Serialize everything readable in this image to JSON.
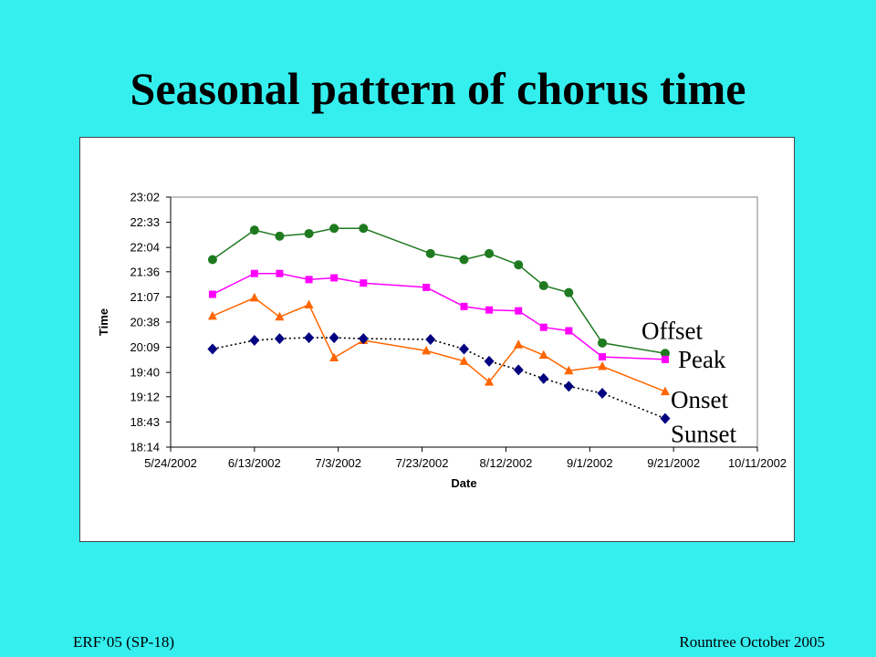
{
  "slide": {
    "title": "Seasonal pattern of chorus time",
    "footer_left": "ERF’05 (SP-18)",
    "footer_right": "Rountree October 2005"
  },
  "chart_data": {
    "type": "line",
    "xlabel": "Date",
    "ylabel": "Time",
    "xlim": [
      "2002-05-24",
      "2002-10-11"
    ],
    "ylim": [
      "18:14",
      "23:02"
    ],
    "x_ticks": [
      "5/24/2002",
      "6/13/2002",
      "7/3/2002",
      "7/23/2002",
      "8/12/2002",
      "9/1/2002",
      "9/21/2002",
      "10/11/2002"
    ],
    "y_ticks": [
      "23:02",
      "22:33",
      "22:04",
      "21:36",
      "21:07",
      "20:38",
      "20:09",
      "19:40",
      "19:12",
      "18:43",
      "18:14"
    ],
    "grid": false,
    "legend": "inline labels at the right end of each series",
    "series": [
      {
        "name": "Offset",
        "color": "#1f7a1f",
        "marker": "circle",
        "line": "solid",
        "points": [
          [
            "2002-06-03",
            "21:50"
          ],
          [
            "2002-06-13",
            "22:24"
          ],
          [
            "2002-06-19",
            "22:17"
          ],
          [
            "2002-06-26",
            "22:20"
          ],
          [
            "2002-07-02",
            "22:26"
          ],
          [
            "2002-07-09",
            "22:26"
          ],
          [
            "2002-07-25",
            "21:57"
          ],
          [
            "2002-08-02",
            "21:50"
          ],
          [
            "2002-08-08",
            "21:57"
          ],
          [
            "2002-08-15",
            "21:44"
          ],
          [
            "2002-08-21",
            "21:20"
          ],
          [
            "2002-08-27",
            "21:12"
          ],
          [
            "2002-09-04",
            "20:14"
          ],
          [
            "2002-09-19",
            "20:02"
          ]
        ]
      },
      {
        "name": "Peak",
        "color": "#ff00ff",
        "marker": "square",
        "line": "solid",
        "points": [
          [
            "2002-06-03",
            "21:10"
          ],
          [
            "2002-06-13",
            "21:34"
          ],
          [
            "2002-06-19",
            "21:34"
          ],
          [
            "2002-06-26",
            "21:27"
          ],
          [
            "2002-07-02",
            "21:29"
          ],
          [
            "2002-07-09",
            "21:23"
          ],
          [
            "2002-07-24",
            "21:18"
          ],
          [
            "2002-08-02",
            "20:56"
          ],
          [
            "2002-08-08",
            "20:52"
          ],
          [
            "2002-08-15",
            "20:51"
          ],
          [
            "2002-08-21",
            "20:32"
          ],
          [
            "2002-08-27",
            "20:28"
          ],
          [
            "2002-09-04",
            "19:58"
          ],
          [
            "2002-09-19",
            "19:55"
          ]
        ]
      },
      {
        "name": "Onset",
        "color": "#ff6600",
        "marker": "triangle",
        "line": "solid",
        "points": [
          [
            "2002-06-03",
            "20:45"
          ],
          [
            "2002-06-13",
            "21:06"
          ],
          [
            "2002-06-19",
            "20:44"
          ],
          [
            "2002-06-26",
            "20:58"
          ],
          [
            "2002-07-02",
            "19:57"
          ],
          [
            "2002-07-09",
            "20:17"
          ],
          [
            "2002-07-24",
            "20:05"
          ],
          [
            "2002-08-02",
            "19:53"
          ],
          [
            "2002-08-08",
            "19:29"
          ],
          [
            "2002-08-15",
            "20:12"
          ],
          [
            "2002-08-21",
            "20:00"
          ],
          [
            "2002-08-27",
            "19:42"
          ],
          [
            "2002-09-04",
            "19:47"
          ],
          [
            "2002-09-19",
            "19:18"
          ]
        ]
      },
      {
        "name": "Sunset",
        "color": "#000080",
        "marker": "diamond",
        "line": "dotted",
        "points": [
          [
            "2002-06-03",
            "20:07"
          ],
          [
            "2002-06-13",
            "20:17"
          ],
          [
            "2002-06-19",
            "20:19"
          ],
          [
            "2002-06-26",
            "20:20"
          ],
          [
            "2002-07-02",
            "20:20"
          ],
          [
            "2002-07-09",
            "20:19"
          ],
          [
            "2002-07-25",
            "20:18"
          ],
          [
            "2002-08-02",
            "20:07"
          ],
          [
            "2002-08-08",
            "19:53"
          ],
          [
            "2002-08-15",
            "19:43"
          ],
          [
            "2002-08-21",
            "19:33"
          ],
          [
            "2002-08-27",
            "19:24"
          ],
          [
            "2002-09-04",
            "19:16"
          ],
          [
            "2002-09-19",
            "18:47"
          ]
        ]
      }
    ]
  }
}
